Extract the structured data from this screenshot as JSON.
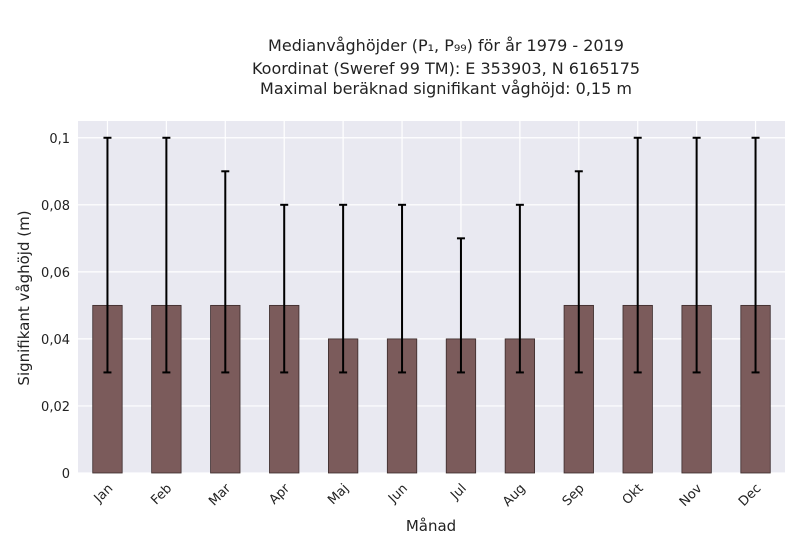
{
  "chart_data": {
    "type": "bar",
    "title_lines": [
      "Medianvåghöjder (P₁, P₉₉) för år 1979 - 2019",
      "Koordinat (Sweref 99 TM): E 353903, N 6165175",
      "Maximal beräknad signifikant våghöjd: 0,15 m"
    ],
    "xlabel": "Månad",
    "ylabel": "Signifikant våghöjd (m)",
    "categories": [
      "Jan",
      "Feb",
      "Mar",
      "Apr",
      "Maj",
      "Jun",
      "Jul",
      "Aug",
      "Sep",
      "Okt",
      "Nov",
      "Dec"
    ],
    "values": [
      0.05,
      0.05,
      0.05,
      0.05,
      0.04,
      0.04,
      0.04,
      0.04,
      0.05,
      0.05,
      0.05,
      0.05
    ],
    "p1": [
      0.03,
      0.03,
      0.03,
      0.03,
      0.03,
      0.03,
      0.03,
      0.03,
      0.03,
      0.03,
      0.03,
      0.03
    ],
    "p99": [
      0.1,
      0.1,
      0.09,
      0.08,
      0.08,
      0.08,
      0.07,
      0.08,
      0.09,
      0.1,
      0.1,
      0.1
    ],
    "ylim": [
      0,
      0.105
    ],
    "yticks": [
      0,
      0.02,
      0.04,
      0.06,
      0.08,
      0.1
    ],
    "ytick_labels": [
      "0",
      "0,02",
      "0,04",
      "0,06",
      "0,08",
      "0,1"
    ],
    "grid": true,
    "colors": {
      "bar": "#7b5b5b",
      "bar_edge": "#3a2a2a",
      "errorbar": "#000000",
      "plot_background": "#e9e9f1",
      "grid": "#ffffff"
    }
  }
}
